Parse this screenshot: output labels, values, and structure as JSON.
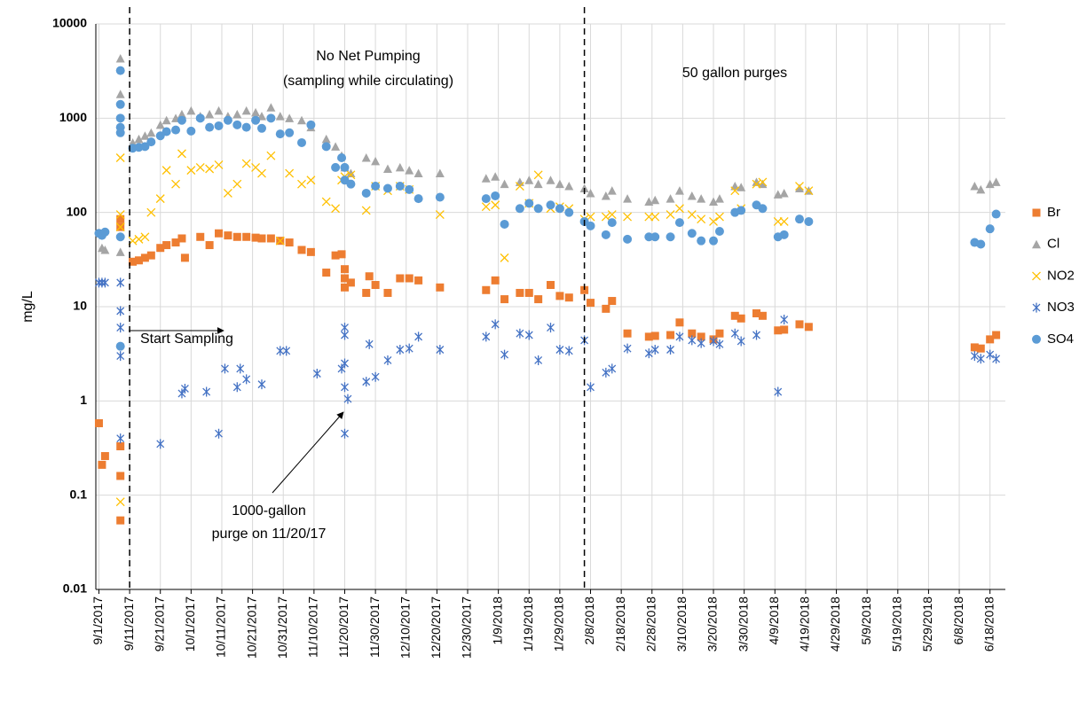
{
  "chart_data": {
    "type": "scatter",
    "y_label": "mg/L",
    "log_y": true,
    "grid": true,
    "legend": "right",
    "ylim": [
      0.01,
      10000
    ],
    "yticks": [
      0.01,
      0.1,
      1,
      10,
      100,
      1000,
      10000
    ],
    "xlim": [
      "2017-08-31",
      "2018-06-23"
    ],
    "xticks": [
      {
        "value": "2017-09-01",
        "label": "9/1/2017"
      },
      {
        "value": "2017-09-11",
        "label": "9/11/2017"
      },
      {
        "value": "2017-09-21",
        "label": "9/21/2017"
      },
      {
        "value": "2017-10-01",
        "label": "10/1/2017"
      },
      {
        "value": "2017-10-11",
        "label": "10/11/2017"
      },
      {
        "value": "2017-10-21",
        "label": "10/21/2017"
      },
      {
        "value": "2017-10-31",
        "label": "10/31/2017"
      },
      {
        "value": "2017-11-10",
        "label": "11/10/2017"
      },
      {
        "value": "2017-11-20",
        "label": "11/20/2017"
      },
      {
        "value": "2017-11-30",
        "label": "11/30/2017"
      },
      {
        "value": "2017-12-10",
        "label": "12/10/2017"
      },
      {
        "value": "2017-12-20",
        "label": "12/20/2017"
      },
      {
        "value": "2017-12-30",
        "label": "12/30/2017"
      },
      {
        "value": "2018-01-09",
        "label": "1/9/2018"
      },
      {
        "value": "2018-01-19",
        "label": "1/19/2018"
      },
      {
        "value": "2018-01-29",
        "label": "1/29/2018"
      },
      {
        "value": "2018-02-08",
        "label": "2/8/2018"
      },
      {
        "value": "2018-02-18",
        "label": "2/18/2018"
      },
      {
        "value": "2018-02-28",
        "label": "2/28/2018"
      },
      {
        "value": "2018-03-10",
        "label": "3/10/2018"
      },
      {
        "value": "2018-03-20",
        "label": "3/20/2018"
      },
      {
        "value": "2018-03-30",
        "label": "3/30/2018"
      },
      {
        "value": "2018-04-09",
        "label": "4/9/2018"
      },
      {
        "value": "2018-04-19",
        "label": "4/19/2018"
      },
      {
        "value": "2018-04-29",
        "label": "4/29/2018"
      },
      {
        "value": "2018-05-09",
        "label": "5/9/2018"
      },
      {
        "value": "2018-05-19",
        "label": "5/19/2018"
      },
      {
        "value": "2018-05-29",
        "label": "5/29/2018"
      },
      {
        "value": "2018-06-08",
        "label": "6/8/2018"
      },
      {
        "value": "2018-06-18",
        "label": "6/18/2018"
      }
    ],
    "vlines": [
      "2017-09-11",
      "2018-02-06"
    ],
    "annotations": [
      {
        "text": "No Net Pumping"
      },
      {
        "text": "(sampling while circulating)"
      },
      {
        "text": "50 gallon purges"
      },
      {
        "text": "Start Sampling"
      },
      {
        "text": "1000-gallon"
      },
      {
        "text": "purge on 11/20/17"
      }
    ],
    "series": [
      {
        "name": "Br",
        "color": "#ED7D31",
        "marker": "square",
        "x": [
          "2017-09-01",
          "2017-09-02",
          "2017-09-03",
          "2017-09-08",
          "2017-09-08",
          "2017-09-08",
          "2017-09-08",
          "2017-09-08",
          "2017-09-12",
          "2017-09-14",
          "2017-09-16",
          "2017-09-18",
          "2017-09-21",
          "2017-09-23",
          "2017-09-26",
          "2017-09-28",
          "2017-09-29",
          "2017-10-04",
          "2017-10-07",
          "2017-10-10",
          "2017-10-13",
          "2017-10-16",
          "2017-10-19",
          "2017-10-22",
          "2017-10-24",
          "2017-10-27",
          "2017-10-30",
          "2017-11-02",
          "2017-11-06",
          "2017-11-09",
          "2017-11-14",
          "2017-11-17",
          "2017-11-19",
          "2017-11-20",
          "2017-11-20",
          "2017-11-20",
          "2017-11-22",
          "2017-11-27",
          "2017-11-28",
          "2017-11-30",
          "2017-12-04",
          "2017-12-08",
          "2017-12-11",
          "2017-12-14",
          "2017-12-21",
          "2018-01-05",
          "2018-01-08",
          "2018-01-11",
          "2018-01-16",
          "2018-01-19",
          "2018-01-22",
          "2018-01-26",
          "2018-01-29",
          "2018-02-01",
          "2018-02-06",
          "2018-02-08",
          "2018-02-13",
          "2018-02-15",
          "2018-02-20",
          "2018-02-27",
          "2018-03-01",
          "2018-03-06",
          "2018-03-09",
          "2018-03-13",
          "2018-03-16",
          "2018-03-20",
          "2018-03-22",
          "2018-03-27",
          "2018-03-29",
          "2018-04-03",
          "2018-04-05",
          "2018-04-10",
          "2018-04-12",
          "2018-04-17",
          "2018-04-20",
          "2018-06-13",
          "2018-06-15",
          "2018-06-18",
          "2018-06-20"
        ],
        "values": [
          0.58,
          0.21,
          0.26,
          85,
          70,
          0.33,
          0.16,
          0.054,
          30,
          31,
          33,
          35,
          42,
          45,
          48,
          53,
          33,
          55,
          45,
          60,
          57,
          55,
          55,
          54,
          53,
          53,
          50,
          48,
          40,
          38,
          23,
          35,
          36,
          25,
          20,
          16,
          18,
          14,
          21,
          17,
          14,
          20,
          20,
          19,
          16,
          15,
          19,
          12,
          14,
          14,
          12,
          17,
          13,
          12.5,
          15,
          11,
          9.5,
          11.5,
          5.2,
          4.8,
          4.9,
          5,
          6.8,
          5.2,
          4.8,
          4.5,
          5.2,
          8,
          7.5,
          8.5,
          8,
          5.6,
          5.7,
          6.5,
          6.1,
          3.7,
          3.6,
          4.5,
          5
        ]
      },
      {
        "name": "Cl",
        "color": "#A5A5A5",
        "marker": "triangle",
        "x": [
          "2017-09-02",
          "2017-09-03",
          "2017-09-08",
          "2017-09-08",
          "2017-09-08",
          "2017-09-12",
          "2017-09-14",
          "2017-09-16",
          "2017-09-18",
          "2017-09-21",
          "2017-09-23",
          "2017-09-26",
          "2017-09-28",
          "2017-10-01",
          "2017-10-04",
          "2017-10-07",
          "2017-10-10",
          "2017-10-13",
          "2017-10-16",
          "2017-10-19",
          "2017-10-22",
          "2017-10-24",
          "2017-10-27",
          "2017-10-30",
          "2017-11-02",
          "2017-11-06",
          "2017-11-09",
          "2017-11-14",
          "2017-11-17",
          "2017-11-19",
          "2017-11-20",
          "2017-11-22",
          "2017-11-27",
          "2017-11-30",
          "2017-12-04",
          "2017-12-08",
          "2017-12-11",
          "2017-12-14",
          "2017-12-21",
          "2018-01-05",
          "2018-01-08",
          "2018-01-11",
          "2018-01-16",
          "2018-01-19",
          "2018-01-22",
          "2018-01-26",
          "2018-01-29",
          "2018-02-01",
          "2018-02-06",
          "2018-02-08",
          "2018-02-13",
          "2018-02-15",
          "2018-02-20",
          "2018-02-27",
          "2018-03-01",
          "2018-03-06",
          "2018-03-09",
          "2018-03-13",
          "2018-03-16",
          "2018-03-20",
          "2018-03-22",
          "2018-03-27",
          "2018-03-29",
          "2018-04-03",
          "2018-04-05",
          "2018-04-10",
          "2018-04-12",
          "2018-04-17",
          "2018-04-20",
          "2018-06-13",
          "2018-06-15",
          "2018-06-18",
          "2018-06-20"
        ],
        "values": [
          42,
          40,
          4300,
          1800,
          38,
          550,
          600,
          650,
          700,
          850,
          950,
          1000,
          1100,
          1200,
          1050,
          1100,
          1200,
          1050,
          1100,
          1200,
          1150,
          1050,
          1300,
          1050,
          1000,
          950,
          800,
          600,
          500,
          400,
          300,
          260,
          380,
          350,
          290,
          300,
          280,
          260,
          260,
          230,
          240,
          200,
          210,
          220,
          200,
          220,
          200,
          190,
          180,
          160,
          150,
          170,
          140,
          130,
          135,
          140,
          170,
          150,
          140,
          130,
          140,
          190,
          185,
          210,
          200,
          155,
          160,
          180,
          170,
          190,
          175,
          200,
          210
        ]
      },
      {
        "name": "NO2",
        "color": "#FFC000",
        "marker": "x",
        "x": [
          "2017-09-08",
          "2017-09-08",
          "2017-09-08",
          "2017-09-08",
          "2017-09-12",
          "2017-09-14",
          "2017-09-16",
          "2017-09-18",
          "2017-09-21",
          "2017-09-23",
          "2017-09-26",
          "2017-09-28",
          "2017-10-01",
          "2017-10-04",
          "2017-10-07",
          "2017-10-10",
          "2017-10-13",
          "2017-10-16",
          "2017-10-19",
          "2017-10-22",
          "2017-10-24",
          "2017-10-27",
          "2017-10-30",
          "2017-11-02",
          "2017-11-06",
          "2017-11-09",
          "2017-11-14",
          "2017-11-17",
          "2017-11-19",
          "2017-11-20",
          "2017-11-22",
          "2017-11-27",
          "2017-11-30",
          "2017-12-04",
          "2017-12-08",
          "2017-12-11",
          "2017-12-21",
          "2018-01-05",
          "2018-01-08",
          "2018-01-11",
          "2018-01-16",
          "2018-01-19",
          "2018-01-22",
          "2018-01-26",
          "2018-01-29",
          "2018-02-01",
          "2018-02-06",
          "2018-02-08",
          "2018-02-13",
          "2018-02-15",
          "2018-02-20",
          "2018-02-27",
          "2018-03-01",
          "2018-03-06",
          "2018-03-09",
          "2018-03-13",
          "2018-03-16",
          "2018-03-20",
          "2018-03-22",
          "2018-03-27",
          "2018-03-29",
          "2018-04-03",
          "2018-04-05",
          "2018-04-10",
          "2018-04-12",
          "2018-04-17",
          "2018-04-20"
        ],
        "values": [
          380,
          95,
          70,
          0.085,
          50,
          52,
          55,
          100,
          140,
          280,
          200,
          420,
          280,
          300,
          290,
          320,
          160,
          200,
          330,
          300,
          260,
          400,
          50,
          260,
          200,
          220,
          130,
          110,
          220,
          240,
          250,
          105,
          190,
          170,
          190,
          175,
          95,
          115,
          120,
          33,
          190,
          125,
          250,
          110,
          115,
          110,
          85,
          90,
          90,
          95,
          90,
          90,
          90,
          95,
          110,
          95,
          85,
          80,
          90,
          170,
          110,
          200,
          210,
          80,
          80,
          190,
          170
        ]
      },
      {
        "name": "NO3",
        "color": "#4472C4",
        "marker": "asterisk",
        "x": [
          "2017-09-01",
          "2017-09-02",
          "2017-09-03",
          "2017-09-08",
          "2017-09-08",
          "2017-09-08",
          "2017-09-08",
          "2017-09-08",
          "2017-09-21",
          "2017-09-28",
          "2017-09-29",
          "2017-10-06",
          "2017-10-10",
          "2017-10-12",
          "2017-10-16",
          "2017-10-17",
          "2017-10-19",
          "2017-10-24",
          "2017-10-30",
          "2017-11-01",
          "2017-11-11",
          "2017-11-19",
          "2017-11-20",
          "2017-11-20",
          "2017-11-20",
          "2017-11-20",
          "2017-11-20",
          "2017-11-21",
          "2017-11-27",
          "2017-11-28",
          "2017-11-30",
          "2017-12-04",
          "2017-12-08",
          "2017-12-11",
          "2017-12-14",
          "2017-12-21",
          "2018-01-05",
          "2018-01-08",
          "2018-01-11",
          "2018-01-16",
          "2018-01-19",
          "2018-01-22",
          "2018-01-26",
          "2018-01-29",
          "2018-02-01",
          "2018-02-06",
          "2018-02-08",
          "2018-02-13",
          "2018-02-15",
          "2018-02-20",
          "2018-02-27",
          "2018-03-01",
          "2018-03-06",
          "2018-03-09",
          "2018-03-13",
          "2018-03-16",
          "2018-03-20",
          "2018-03-22",
          "2018-03-27",
          "2018-03-29",
          "2018-04-03",
          "2018-04-10",
          "2018-04-12",
          "2018-06-13",
          "2018-06-15",
          "2018-06-18",
          "2018-06-20"
        ],
        "values": [
          18,
          18,
          18,
          18,
          9,
          6,
          3,
          0.4,
          0.35,
          1.2,
          1.35,
          1.25,
          0.45,
          2.2,
          1.4,
          2.2,
          1.7,
          1.5,
          3.4,
          3.4,
          1.95,
          2.2,
          6,
          5,
          2.5,
          1.4,
          0.45,
          1.05,
          1.6,
          4,
          1.8,
          2.7,
          3.5,
          3.6,
          4.8,
          3.5,
          4.8,
          6.5,
          3.1,
          5.2,
          5,
          2.7,
          6,
          3.5,
          3.4,
          4.4,
          1.4,
          2,
          2.2,
          3.6,
          3.2,
          3.5,
          3.5,
          4.8,
          4.4,
          4.1,
          4.3,
          4,
          5.2,
          4.3,
          5,
          1.25,
          7.3,
          3,
          2.8,
          3.1,
          2.8
        ]
      },
      {
        "name": "SO4",
        "color": "#5B9BD5",
        "marker": "circle",
        "x": [
          "2017-09-01",
          "2017-09-02",
          "2017-09-03",
          "2017-09-08",
          "2017-09-08",
          "2017-09-08",
          "2017-09-08",
          "2017-09-08",
          "2017-09-08",
          "2017-09-08",
          "2017-09-12",
          "2017-09-14",
          "2017-09-16",
          "2017-09-18",
          "2017-09-21",
          "2017-09-23",
          "2017-09-26",
          "2017-09-28",
          "2017-10-01",
          "2017-10-04",
          "2017-10-07",
          "2017-10-10",
          "2017-10-13",
          "2017-10-16",
          "2017-10-19",
          "2017-10-22",
          "2017-10-24",
          "2017-10-27",
          "2017-10-30",
          "2017-11-02",
          "2017-11-06",
          "2017-11-09",
          "2017-11-14",
          "2017-11-17",
          "2017-11-19",
          "2017-11-20",
          "2017-11-20",
          "2017-11-22",
          "2017-11-27",
          "2017-11-30",
          "2017-12-04",
          "2017-12-08",
          "2017-12-11",
          "2017-12-14",
          "2017-12-21",
          "2018-01-05",
          "2018-01-08",
          "2018-01-11",
          "2018-01-16",
          "2018-01-19",
          "2018-01-22",
          "2018-01-26",
          "2018-01-29",
          "2018-02-01",
          "2018-02-06",
          "2018-02-08",
          "2018-02-13",
          "2018-02-15",
          "2018-02-20",
          "2018-02-27",
          "2018-03-01",
          "2018-03-06",
          "2018-03-09",
          "2018-03-13",
          "2018-03-16",
          "2018-03-20",
          "2018-03-22",
          "2018-03-27",
          "2018-03-29",
          "2018-04-03",
          "2018-04-05",
          "2018-04-10",
          "2018-04-12",
          "2018-04-17",
          "2018-04-20",
          "2018-06-13",
          "2018-06-15",
          "2018-06-18",
          "2018-06-20"
        ],
        "values": [
          60,
          57,
          62,
          3200,
          1400,
          1000,
          800,
          700,
          55,
          3.8,
          480,
          490,
          500,
          560,
          650,
          720,
          750,
          950,
          730,
          1000,
          800,
          830,
          950,
          850,
          800,
          950,
          780,
          1000,
          680,
          700,
          550,
          850,
          500,
          300,
          380,
          300,
          220,
          200,
          160,
          190,
          180,
          190,
          175,
          140,
          145,
          140,
          150,
          75,
          110,
          125,
          110,
          120,
          110,
          100,
          80,
          72,
          58,
          78,
          52,
          55,
          55,
          55,
          78,
          60,
          50,
          50,
          63,
          100,
          105,
          120,
          110,
          55,
          58,
          85,
          80,
          48,
          46,
          67,
          96
        ]
      }
    ]
  }
}
